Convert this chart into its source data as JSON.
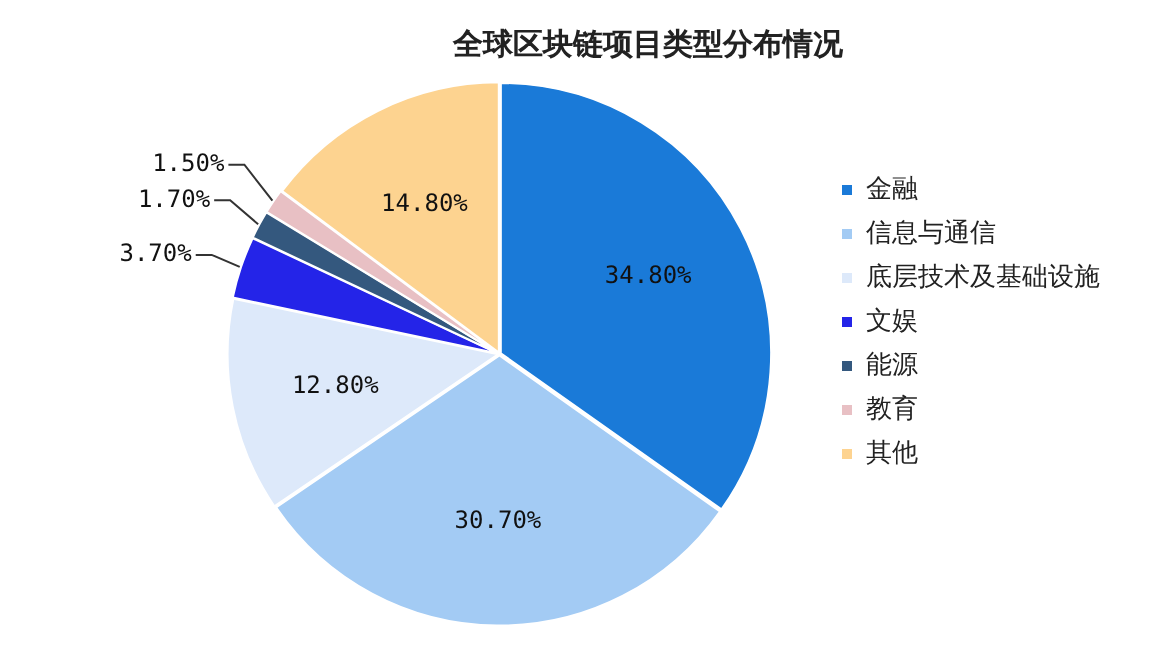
{
  "chart_data": {
    "type": "pie",
    "title": "全球区块链项目类型分布情况",
    "categories": [
      "金融",
      "信息与通信",
      "底层技术及基础设施",
      "文娱",
      "能源",
      "教育",
      "其他"
    ],
    "values": [
      34.8,
      30.7,
      12.8,
      3.7,
      1.7,
      1.5,
      14.8
    ],
    "value_labels": [
      "34.80%",
      "30.70%",
      "12.80%",
      "3.70%",
      "1.70%",
      "1.50%",
      "14.80%"
    ],
    "colors": [
      "#1a7ad8",
      "#a3cbf4",
      "#dde9fa",
      "#2424e8",
      "#34587e",
      "#e8c0c4",
      "#fdd390"
    ],
    "legend": "right"
  }
}
